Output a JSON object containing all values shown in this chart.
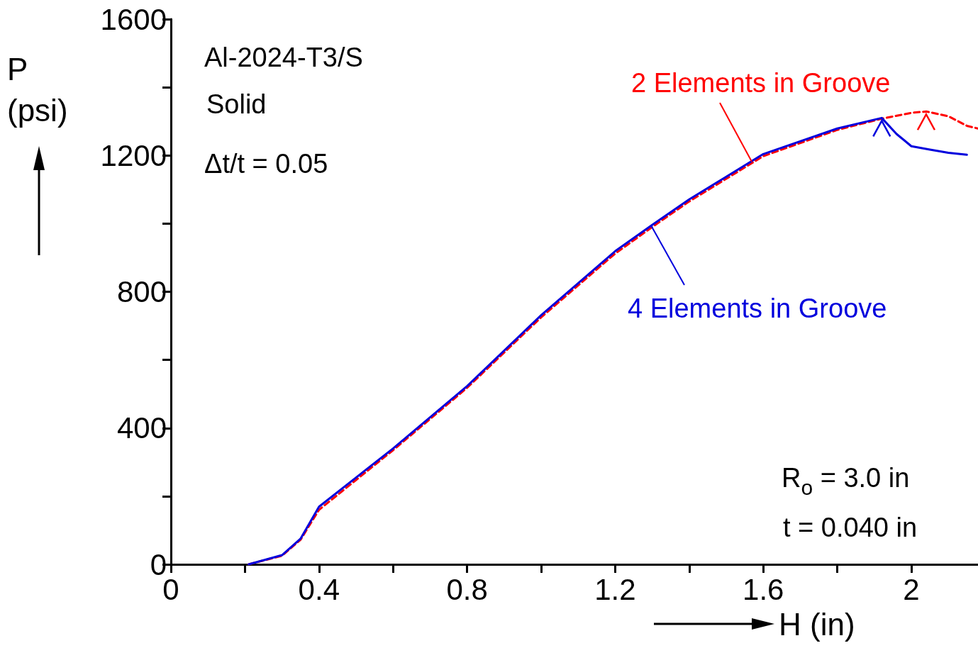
{
  "chart_data": {
    "type": "line",
    "xlabel": "H (in)",
    "ylabel": "P (psi)",
    "annotations": [
      "Al-2024-T3/S",
      "Solid",
      "Δt/t = 0.05",
      "R$_{o}$ = 3.0 in",
      "t = 0.040 in"
    ],
    "xlim": [
      0,
      2.18
    ],
    "ylim": [
      0,
      1600
    ],
    "xticks": [
      0,
      {
        "value": 0.2,
        "label": null
      },
      0.4,
      {
        "value": 0.6,
        "label": null
      },
      0.8,
      {
        "value": 1.0,
        "label": null
      },
      1.2,
      {
        "value": 1.4,
        "label": null
      },
      1.6,
      {
        "value": 1.8,
        "label": null
      },
      2
    ],
    "yticks": [
      0,
      {
        "value": 200,
        "label": null
      },
      400,
      {
        "value": 600,
        "label": null
      },
      800,
      {
        "value": 1000,
        "label": null
      },
      1200,
      {
        "value": 1400,
        "label": null
      },
      1600
    ],
    "grid": false,
    "marker": "none",
    "series": [
      {
        "name": "2 Elements in Groove",
        "color": "#ff0000",
        "line_style": "dashed",
        "x": [
          0.21,
          0.3,
          0.35,
          0.4,
          0.6,
          0.8,
          1.0,
          1.2,
          1.3,
          1.4,
          1.6,
          1.8,
          1.92,
          2.0,
          2.04,
          2.1,
          2.15,
          2.18
        ],
        "values": [
          0,
          25,
          72,
          160,
          335,
          518,
          725,
          912,
          990,
          1065,
          1198,
          1275,
          1308,
          1325,
          1329,
          1315,
          1287,
          1279
        ]
      },
      {
        "name": "4 Elements in Groove",
        "color": "#0000dd",
        "line_style": "solid",
        "x": [
          0.21,
          0.3,
          0.35,
          0.4,
          0.6,
          0.8,
          1.0,
          1.2,
          1.3,
          1.4,
          1.6,
          1.8,
          1.92,
          1.96,
          2.0,
          2.05,
          2.1,
          2.15
        ],
        "values": [
          0,
          27,
          75,
          169,
          340,
          523,
          731,
          919,
          996,
          1071,
          1204,
          1279,
          1310,
          1263,
          1227,
          1217,
          1208,
          1202
        ]
      }
    ]
  }
}
